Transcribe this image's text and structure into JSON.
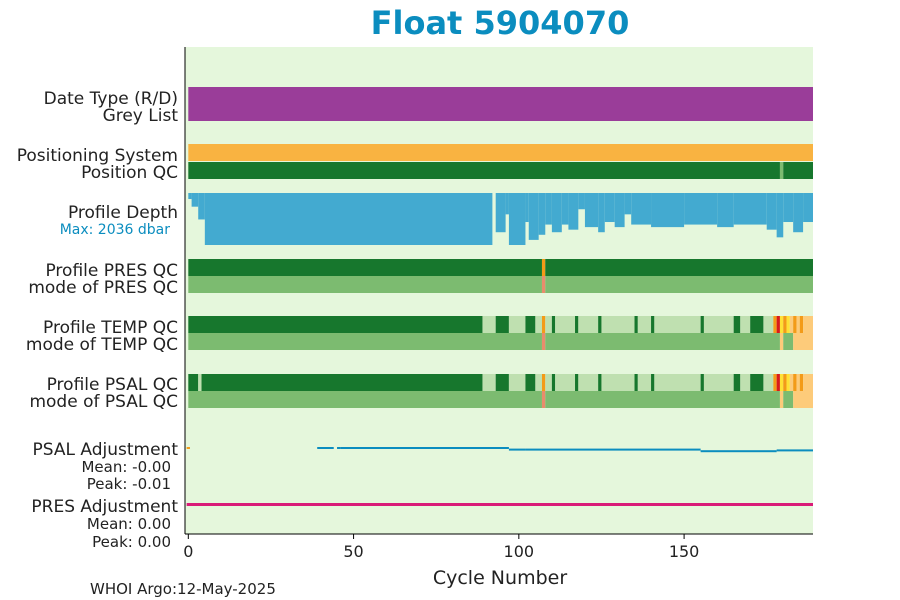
{
  "colors": {
    "title": "#0b8dbf",
    "plot_bg": "#e5f7dc",
    "purple": "#9a3d99",
    "orange": "#f9b341",
    "dark_green": "#17772d",
    "med_green": "#7cbb70",
    "light_green": "#bfe0b0",
    "blue_depth": "#43aad0",
    "psal_line": "#0b8dbf",
    "pres_line": "#d91b78",
    "salmon": "#e98c6c",
    "red": "#d7191c",
    "yellow": "#ffe135",
    "peach": "#fdcb7a",
    "qc_orange": "#f39b18"
  },
  "chart_data": {
    "type": "table",
    "title": "Float 5904070",
    "xlabel": "Cycle Number",
    "xlim": [
      -1,
      189
    ],
    "xticks": [
      0,
      50,
      100,
      150
    ],
    "tick_labels": [
      "0",
      "50",
      "100",
      "150"
    ],
    "footer": "WHOI Argo:12-May-2025",
    "row_labels": {
      "date_type": "Date Type (R/D)",
      "grey_list": "Grey List",
      "positioning": "Positioning System",
      "position_qc": "Position QC",
      "profile_depth": "Profile Depth",
      "max_depth": "Max: 2036 dbar",
      "pres_qc": "Profile PRES QC",
      "pres_mode": "mode of PRES QC",
      "temp_qc": "Profile TEMP QC",
      "temp_mode": "mode of TEMP QC",
      "psal_qc": "Profile PSAL QC",
      "psal_mode": "mode of PSAL QC",
      "psal_adj": "PSAL Adjustment",
      "psal_mean": "Mean: -0.00",
      "psal_peak": "Peak: -0.01",
      "pres_adj": "PRES Adjustment",
      "pres_mean": "Mean: 0.00",
      "pres_peak": "Peak: 0.00"
    },
    "max_depth_dbar": 2036,
    "depth_profile": [
      {
        "from": 0,
        "to": 1,
        "value": 1800
      },
      {
        "from": 1,
        "to": 3,
        "value": 1500
      },
      {
        "from": 3,
        "to": 5,
        "value": 1000
      },
      {
        "from": 5,
        "to": 92,
        "value": 0
      },
      {
        "from": 92,
        "to": 93,
        "value": 2036
      },
      {
        "from": 93,
        "to": 96,
        "value": 500
      },
      {
        "from": 96,
        "to": 97,
        "value": 1200
      },
      {
        "from": 97,
        "to": 102,
        "value": 0
      },
      {
        "from": 102,
        "to": 103,
        "value": 900
      },
      {
        "from": 103,
        "to": 106,
        "value": 200
      },
      {
        "from": 106,
        "to": 108,
        "value": 400
      },
      {
        "from": 108,
        "to": 110,
        "value": 800
      },
      {
        "from": 110,
        "to": 113,
        "value": 500
      },
      {
        "from": 113,
        "to": 115,
        "value": 800
      },
      {
        "from": 115,
        "to": 118,
        "value": 600
      },
      {
        "from": 118,
        "to": 120,
        "value": 1400
      },
      {
        "from": 120,
        "to": 124,
        "value": 700
      },
      {
        "from": 124,
        "to": 126,
        "value": 500
      },
      {
        "from": 126,
        "to": 129,
        "value": 900
      },
      {
        "from": 129,
        "to": 132,
        "value": 700
      },
      {
        "from": 132,
        "to": 134,
        "value": 1200
      },
      {
        "from": 134,
        "to": 140,
        "value": 800
      },
      {
        "from": 140,
        "to": 150,
        "value": 700
      },
      {
        "from": 150,
        "to": 160,
        "value": 800
      },
      {
        "from": 160,
        "to": 165,
        "value": 700
      },
      {
        "from": 165,
        "to": 175,
        "value": 800
      },
      {
        "from": 175,
        "to": 178,
        "value": 600
      },
      {
        "from": 178,
        "to": 180,
        "value": 300
      },
      {
        "from": 180,
        "to": 183,
        "value": 900
      },
      {
        "from": 183,
        "to": 186,
        "value": 500
      },
      {
        "from": 186,
        "to": 189,
        "value": 900
      }
    ],
    "pres_qc_segments": [
      {
        "from": 0,
        "to": 107,
        "flag": "good"
      },
      {
        "from": 107,
        "to": 108,
        "flag": "orange"
      },
      {
        "from": 108,
        "to": 189,
        "flag": "good"
      }
    ],
    "pres_mode_segments": [
      {
        "from": 0,
        "to": 107,
        "flag": "good_mode"
      },
      {
        "from": 107,
        "to": 108,
        "flag": "salmon"
      },
      {
        "from": 108,
        "to": 189,
        "flag": "good_mode"
      }
    ],
    "temp_qc_segments": [
      {
        "from": 0,
        "to": 89,
        "flag": "good"
      },
      {
        "from": 89,
        "to": 93,
        "flag": "light"
      },
      {
        "from": 93,
        "to": 97,
        "flag": "good"
      },
      {
        "from": 97,
        "to": 102,
        "flag": "light"
      },
      {
        "from": 102,
        "to": 105,
        "flag": "good"
      },
      {
        "from": 105,
        "to": 107,
        "flag": "light"
      },
      {
        "from": 107,
        "to": 108,
        "flag": "orange"
      },
      {
        "from": 108,
        "to": 110,
        "flag": "light"
      },
      {
        "from": 110,
        "to": 111,
        "flag": "good"
      },
      {
        "from": 111,
        "to": 117,
        "flag": "light"
      },
      {
        "from": 117,
        "to": 118,
        "flag": "good"
      },
      {
        "from": 118,
        "to": 124,
        "flag": "light"
      },
      {
        "from": 124,
        "to": 125,
        "flag": "good"
      },
      {
        "from": 125,
        "to": 135,
        "flag": "light"
      },
      {
        "from": 135,
        "to": 136,
        "flag": "good"
      },
      {
        "from": 136,
        "to": 140,
        "flag": "light"
      },
      {
        "from": 140,
        "to": 141,
        "flag": "good"
      },
      {
        "from": 141,
        "to": 155,
        "flag": "light"
      },
      {
        "from": 155,
        "to": 156,
        "flag": "good"
      },
      {
        "from": 156,
        "to": 165,
        "flag": "light"
      },
      {
        "from": 165,
        "to": 167,
        "flag": "good"
      },
      {
        "from": 167,
        "to": 170,
        "flag": "light"
      },
      {
        "from": 170,
        "to": 174,
        "flag": "good"
      },
      {
        "from": 174,
        "to": 177,
        "flag": "light"
      },
      {
        "from": 177,
        "to": 178,
        "flag": "orange"
      },
      {
        "from": 178,
        "to": 179,
        "flag": "red"
      },
      {
        "from": 179,
        "to": 180,
        "flag": "yellow"
      },
      {
        "from": 180,
        "to": 181,
        "flag": "orange"
      },
      {
        "from": 181,
        "to": 182,
        "flag": "yellow"
      },
      {
        "from": 182,
        "to": 183,
        "flag": "peach"
      },
      {
        "from": 183,
        "to": 184,
        "flag": "orange"
      },
      {
        "from": 184,
        "to": 185,
        "flag": "peach"
      },
      {
        "from": 185,
        "to": 186,
        "flag": "orange"
      },
      {
        "from": 186,
        "to": 189,
        "flag": "peach"
      }
    ],
    "temp_mode_segments": [
      {
        "from": 0,
        "to": 107,
        "flag": "good_mode"
      },
      {
        "from": 107,
        "to": 108,
        "flag": "salmon"
      },
      {
        "from": 108,
        "to": 179,
        "flag": "good_mode"
      },
      {
        "from": 179,
        "to": 180,
        "flag": "peach"
      },
      {
        "from": 180,
        "to": 183,
        "flag": "good_mode"
      },
      {
        "from": 183,
        "to": 189,
        "flag": "peach"
      }
    ],
    "psal_qc_segments": [
      {
        "from": 0,
        "to": 3,
        "flag": "good"
      },
      {
        "from": 3,
        "to": 4,
        "flag": "light"
      },
      {
        "from": 4,
        "to": 89,
        "flag": "good"
      },
      {
        "from": 89,
        "to": 93,
        "flag": "light"
      },
      {
        "from": 93,
        "to": 97,
        "flag": "good"
      },
      {
        "from": 97,
        "to": 102,
        "flag": "light"
      },
      {
        "from": 102,
        "to": 105,
        "flag": "good"
      },
      {
        "from": 105,
        "to": 107,
        "flag": "light"
      },
      {
        "from": 107,
        "to": 108,
        "flag": "orange"
      },
      {
        "from": 108,
        "to": 110,
        "flag": "light"
      },
      {
        "from": 110,
        "to": 111,
        "flag": "good"
      },
      {
        "from": 111,
        "to": 117,
        "flag": "light"
      },
      {
        "from": 117,
        "to": 118,
        "flag": "good"
      },
      {
        "from": 118,
        "to": 124,
        "flag": "light"
      },
      {
        "from": 124,
        "to": 125,
        "flag": "good"
      },
      {
        "from": 125,
        "to": 135,
        "flag": "light"
      },
      {
        "from": 135,
        "to": 136,
        "flag": "good"
      },
      {
        "from": 136,
        "to": 140,
        "flag": "light"
      },
      {
        "from": 140,
        "to": 141,
        "flag": "good"
      },
      {
        "from": 141,
        "to": 155,
        "flag": "light"
      },
      {
        "from": 155,
        "to": 156,
        "flag": "good"
      },
      {
        "from": 156,
        "to": 165,
        "flag": "light"
      },
      {
        "from": 165,
        "to": 167,
        "flag": "good"
      },
      {
        "from": 167,
        "to": 170,
        "flag": "light"
      },
      {
        "from": 170,
        "to": 174,
        "flag": "good"
      },
      {
        "from": 174,
        "to": 177,
        "flag": "light"
      },
      {
        "from": 177,
        "to": 178,
        "flag": "orange"
      },
      {
        "from": 178,
        "to": 179,
        "flag": "red"
      },
      {
        "from": 179,
        "to": 180,
        "flag": "yellow"
      },
      {
        "from": 180,
        "to": 181,
        "flag": "orange"
      },
      {
        "from": 181,
        "to": 182,
        "flag": "yellow"
      },
      {
        "from": 182,
        "to": 183,
        "flag": "peach"
      },
      {
        "from": 183,
        "to": 184,
        "flag": "orange"
      },
      {
        "from": 184,
        "to": 185,
        "flag": "peach"
      },
      {
        "from": 185,
        "to": 186,
        "flag": "orange"
      },
      {
        "from": 186,
        "to": 189,
        "flag": "peach"
      }
    ],
    "psal_mode_segments": [
      {
        "from": 0,
        "to": 107,
        "flag": "good_mode"
      },
      {
        "from": 107,
        "to": 108,
        "flag": "salmon"
      },
      {
        "from": 108,
        "to": 179,
        "flag": "good_mode"
      },
      {
        "from": 179,
        "to": 180,
        "flag": "peach"
      },
      {
        "from": 180,
        "to": 183,
        "flag": "good_mode"
      },
      {
        "from": 183,
        "to": 189,
        "flag": "peach"
      }
    ],
    "position_qc_segments": [
      {
        "from": 0,
        "to": 179,
        "flag": "good"
      },
      {
        "from": 179,
        "to": 180,
        "flag": "good_mode"
      },
      {
        "from": 180,
        "to": 189,
        "flag": "good"
      }
    ],
    "psal_adjustment": [
      {
        "from": -0.5,
        "to": 0.5,
        "value": 0.0
      },
      {
        "from": 39,
        "to": 44,
        "value": 0.0
      },
      {
        "from": 45,
        "to": 46,
        "value": 0.0
      },
      {
        "from": 46,
        "to": 97,
        "value": 0.0
      },
      {
        "from": 97,
        "to": 102,
        "value": -0.002
      },
      {
        "from": 102,
        "to": 155,
        "value": -0.002
      },
      {
        "from": 155,
        "to": 178,
        "value": -0.004
      },
      {
        "from": 178,
        "to": 189,
        "value": -0.003
      }
    ],
    "pres_adjustment": [
      {
        "from": -0.5,
        "to": 189,
        "value": 0.0
      }
    ]
  }
}
